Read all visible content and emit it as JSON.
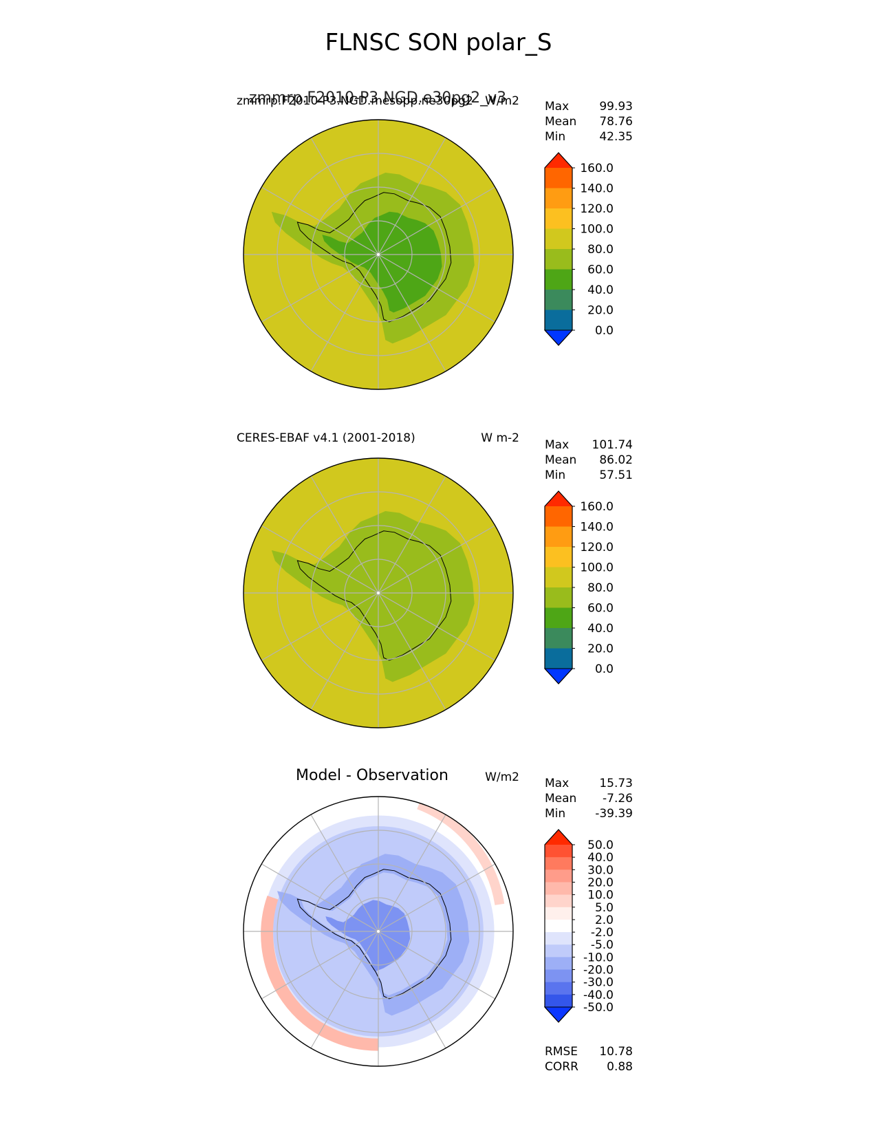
{
  "title": "FLNSC SON polar_S",
  "chart_data": [
    {
      "type": "heatmap",
      "projection": "south-polar-stereographic",
      "title_left": "zmmrp.F2010-P3.NGD.mesopp.ne30pg2",
      "title_center_overlap": "zmmrp.F2010-P3.NGD.e30pg2_v3",
      "title_right": "W/m2",
      "stats": {
        "max_label": "Max",
        "max": "99.93",
        "mean_label": "Mean",
        "mean": "78.76",
        "min_label": "Min",
        "min": "42.35"
      },
      "colorbar": {
        "levels": [
          "160.0",
          "140.0",
          "120.0",
          "100.0",
          "80.0",
          "60.0",
          "40.0",
          "20.0",
          "0.0"
        ],
        "colors": [
          "#ff2a00",
          "#ff6600",
          "#ff9c12",
          "#fcc020",
          "#d1c81e",
          "#99bc1c",
          "#4ea616",
          "#3b8a5c",
          "#0a6d9c",
          "#0037ff"
        ]
      },
      "field": {
        "ocean_value": 90,
        "coast_value": 70,
        "interior_value": 50
      }
    },
    {
      "type": "heatmap",
      "projection": "south-polar-stereographic",
      "title_left": "CERES-EBAF v4.1 (2001-2018)",
      "title_right": "W m-2",
      "stats": {
        "max_label": "Max",
        "max": "101.74",
        "mean_label": "Mean",
        "mean": "86.02",
        "min_label": "Min",
        "min": "57.51"
      },
      "colorbar": {
        "levels": [
          "160.0",
          "140.0",
          "120.0",
          "100.0",
          "80.0",
          "60.0",
          "40.0",
          "20.0",
          "0.0"
        ],
        "colors": [
          "#ff2a00",
          "#ff6600",
          "#ff9c12",
          "#fcc020",
          "#d1c81e",
          "#99bc1c",
          "#4ea616",
          "#3b8a5c",
          "#0a6d9c",
          "#0037ff"
        ]
      },
      "field": {
        "ocean_value": 90,
        "coast_value": 75,
        "interior_value": 70
      }
    },
    {
      "type": "heatmap",
      "projection": "south-polar-stereographic",
      "title_center": "Model - Observation",
      "title_right": "W/m2",
      "stats": {
        "max_label": "Max",
        "max": "15.73",
        "mean_label": "Mean",
        "mean": "-7.26",
        "min_label": "Min",
        "min": "-39.39"
      },
      "colorbar": {
        "levels": [
          "50.0",
          "40.0",
          "30.0",
          "20.0",
          "10.0",
          "5.0",
          "2.0",
          "-2.0",
          "-5.0",
          "-10.0",
          "-20.0",
          "-30.0",
          "-40.0",
          "-50.0"
        ],
        "colors": [
          "#ff2a00",
          "#ff5232",
          "#ff7a5e",
          "#ff9c8a",
          "#ffb9ab",
          "#ffd4cb",
          "#fff0ec",
          "#ffffff",
          "#dfe4fc",
          "#c0cbfa",
          "#9daff6",
          "#7d93f2",
          "#5a74ee",
          "#3456ea",
          "#0c37ff"
        ]
      },
      "footer": {
        "rmse_label": "RMSE",
        "rmse": "10.78",
        "corr_label": "CORR",
        "corr": "0.88"
      }
    }
  ]
}
